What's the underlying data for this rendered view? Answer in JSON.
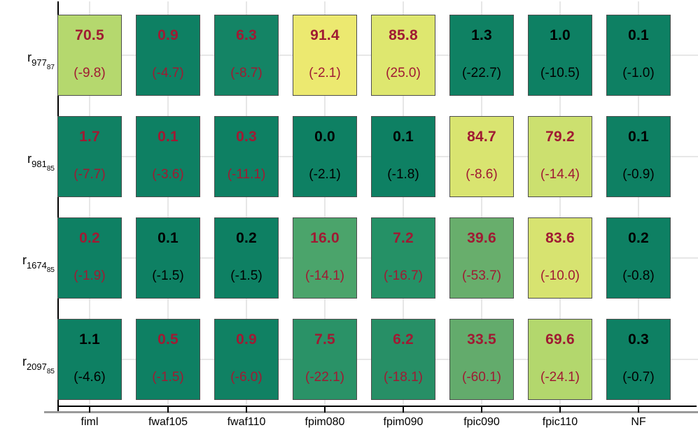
{
  "chart_data": {
    "type": "heatmap",
    "title": "",
    "xlabel": "",
    "ylabel": "",
    "value_range": [
      0,
      100
    ],
    "grid": true,
    "legend": false,
    "columns": [
      "fiml",
      "fwaf105",
      "fwaf110",
      "fpim080",
      "fpim090",
      "fpic090",
      "fpic110",
      "NF"
    ],
    "rows": [
      {
        "label_base": "r",
        "label_main": "977",
        "label_sub": "87",
        "cells": [
          {
            "value": "70.5",
            "delta": "(-9.8)",
            "bg": "#b5d86e",
            "fg": "#a01a33"
          },
          {
            "value": "0.9",
            "delta": "(-4.7)",
            "bg": "#0e8063",
            "fg": "#a01a33"
          },
          {
            "value": "6.3",
            "delta": "(-8.7)",
            "bg": "#148465",
            "fg": "#a01a33"
          },
          {
            "value": "91.4",
            "delta": "(-2.1)",
            "bg": "#ece970",
            "fg": "#a01a33"
          },
          {
            "value": "85.8",
            "delta": "(25.0)",
            "bg": "#dee76f",
            "fg": "#a01a33"
          },
          {
            "value": "1.3",
            "delta": "(-22.7)",
            "bg": "#0f8163",
            "fg": "#000000"
          },
          {
            "value": "1.0",
            "delta": "(-10.5)",
            "bg": "#0e8063",
            "fg": "#000000"
          },
          {
            "value": "0.1",
            "delta": "(-1.0)",
            "bg": "#0e8063",
            "fg": "#000000"
          }
        ]
      },
      {
        "label_base": "r",
        "label_main": "981",
        "label_sub": "85",
        "cells": [
          {
            "value": "1.7",
            "delta": "(-7.7)",
            "bg": "#108163",
            "fg": "#a01a33"
          },
          {
            "value": "0.1",
            "delta": "(-3.6)",
            "bg": "#0e8063",
            "fg": "#a01a33"
          },
          {
            "value": "0.3",
            "delta": "(-11.1)",
            "bg": "#0e8063",
            "fg": "#a01a33"
          },
          {
            "value": "0.0",
            "delta": "(-2.1)",
            "bg": "#0e8063",
            "fg": "#000000"
          },
          {
            "value": "0.1",
            "delta": "(-1.8)",
            "bg": "#0e8063",
            "fg": "#000000"
          },
          {
            "value": "84.7",
            "delta": "(-8.6)",
            "bg": "#d9e470",
            "fg": "#a01a33"
          },
          {
            "value": "79.2",
            "delta": "(-14.4)",
            "bg": "#cce06f",
            "fg": "#a01a33"
          },
          {
            "value": "0.1",
            "delta": "(-0.9)",
            "bg": "#0e8063",
            "fg": "#000000"
          }
        ]
      },
      {
        "label_base": "r",
        "label_main": "1674",
        "label_sub": "85",
        "cells": [
          {
            "value": "0.2",
            "delta": "(-1.9)",
            "bg": "#0e8063",
            "fg": "#a01a33"
          },
          {
            "value": "0.1",
            "delta": "(-1.5)",
            "bg": "#0e8063",
            "fg": "#000000"
          },
          {
            "value": "0.2",
            "delta": "(-1.5)",
            "bg": "#0e8063",
            "fg": "#000000"
          },
          {
            "value": "16.0",
            "delta": "(-14.1)",
            "bg": "#4ba46b",
            "fg": "#a01a33"
          },
          {
            "value": "7.2",
            "delta": "(-16.7)",
            "bg": "#259166",
            "fg": "#a01a33"
          },
          {
            "value": "39.6",
            "delta": "(-53.7)",
            "bg": "#68ae6c",
            "fg": "#a01a33"
          },
          {
            "value": "83.6",
            "delta": "(-10.0)",
            "bg": "#d7e370",
            "fg": "#a01a33"
          },
          {
            "value": "0.2",
            "delta": "(-0.8)",
            "bg": "#0e8063",
            "fg": "#000000"
          }
        ]
      },
      {
        "label_base": "r",
        "label_main": "2097",
        "label_sub": "85",
        "cells": [
          {
            "value": "1.1",
            "delta": "(-4.6)",
            "bg": "#0e8063",
            "fg": "#000000"
          },
          {
            "value": "0.5",
            "delta": "(-1.5)",
            "bg": "#0e8063",
            "fg": "#a01a33"
          },
          {
            "value": "0.9",
            "delta": "(-6.0)",
            "bg": "#108163",
            "fg": "#a01a33"
          },
          {
            "value": "7.5",
            "delta": "(-22.1)",
            "bg": "#2a9267",
            "fg": "#a01a33"
          },
          {
            "value": "6.2",
            "delta": "(-18.1)",
            "bg": "#278f66",
            "fg": "#a01a33"
          },
          {
            "value": "33.5",
            "delta": "(-60.1)",
            "bg": "#63ab6c",
            "fg": "#a01a33"
          },
          {
            "value": "69.6",
            "delta": "(-24.1)",
            "bg": "#b3d76d",
            "fg": "#a01a33"
          },
          {
            "value": "0.3",
            "delta": "(-0.7)",
            "bg": "#0e8063",
            "fg": "#000000"
          }
        ]
      }
    ]
  },
  "style": {
    "accent_red": "#a01a33",
    "cell_border": "#4d4d4d",
    "grid_color": "#e7e7e7",
    "axis_color": "#000000",
    "baseline_color": "#9a9a9a",
    "background": "#ffffff"
  }
}
